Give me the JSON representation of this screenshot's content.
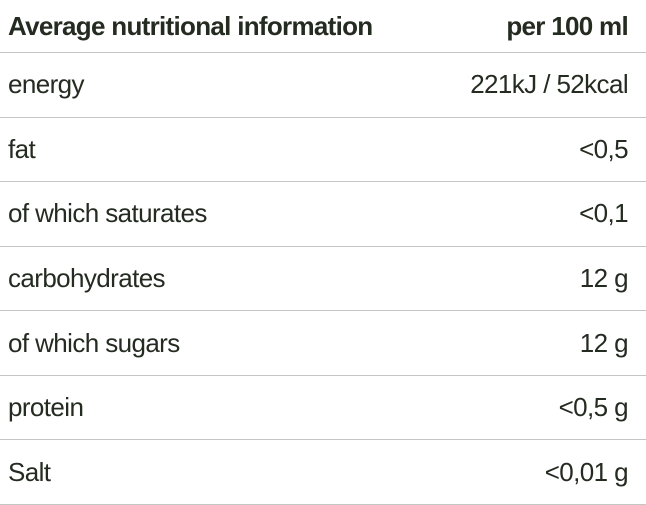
{
  "table": {
    "header": {
      "label": "Average nutritional information",
      "value": "per 100 ml"
    },
    "rows": [
      {
        "label": "energy",
        "value": "221kJ / 52kcal"
      },
      {
        "label": "fat",
        "value": "<0,5"
      },
      {
        "label": "of which saturates",
        "value": "<0,1"
      },
      {
        "label": "carbohydrates",
        "value": "12 g"
      },
      {
        "label": "of which sugars",
        "value": "12 g"
      },
      {
        "label": "protein",
        "value": "<0,5 g"
      },
      {
        "label": "Salt",
        "value": "<0,01 g"
      }
    ],
    "colors": {
      "text": "#242b21",
      "divider": "#c5c5c5",
      "background": "#ffffff"
    }
  }
}
